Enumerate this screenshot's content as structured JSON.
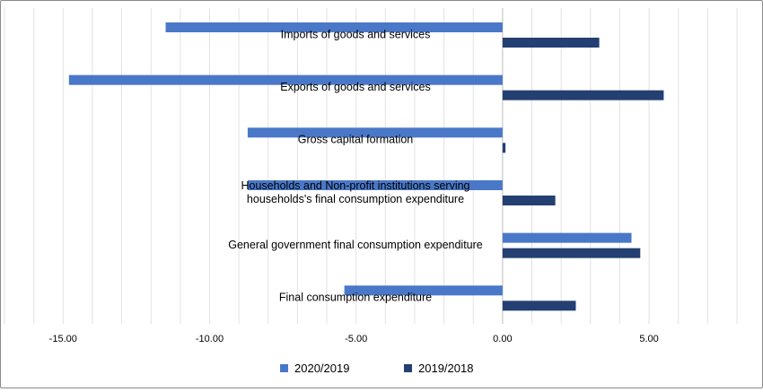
{
  "chart_data": {
    "type": "bar",
    "orientation": "horizontal",
    "title": "",
    "xlabel": "",
    "ylabel": "",
    "xlim": [
      -17,
      8
    ],
    "grid": true,
    "legend_position": "bottom",
    "tick_values": [
      -15,
      -10,
      -5,
      0,
      5
    ],
    "tick_labels": [
      "-15.00",
      "-10.00",
      "-5.00",
      "0.00",
      "5.00"
    ],
    "categories": [
      {
        "id": "imports",
        "lines": [
          "Imports of goods and services"
        ]
      },
      {
        "id": "exports",
        "lines": [
          "Exports of goods and services"
        ]
      },
      {
        "id": "gcf",
        "lines": [
          "Gross capital formation"
        ]
      },
      {
        "id": "households",
        "lines": [
          "Households and Non-profit institutions serving",
          "households's final consumption expenditure"
        ]
      },
      {
        "id": "government",
        "lines": [
          "General government final consumption expenditure"
        ]
      },
      {
        "id": "fce",
        "lines": [
          "Final consumption expenditure"
        ]
      }
    ],
    "series": [
      {
        "name": "2020/2019",
        "color": "#4a78c8",
        "values": [
          -11.5,
          -14.8,
          -8.7,
          -8.7,
          4.4,
          -5.4
        ]
      },
      {
        "name": "2019/2018",
        "color": "#243f72",
        "values": [
          3.3,
          5.5,
          0.1,
          1.8,
          4.7,
          2.5
        ]
      }
    ]
  }
}
